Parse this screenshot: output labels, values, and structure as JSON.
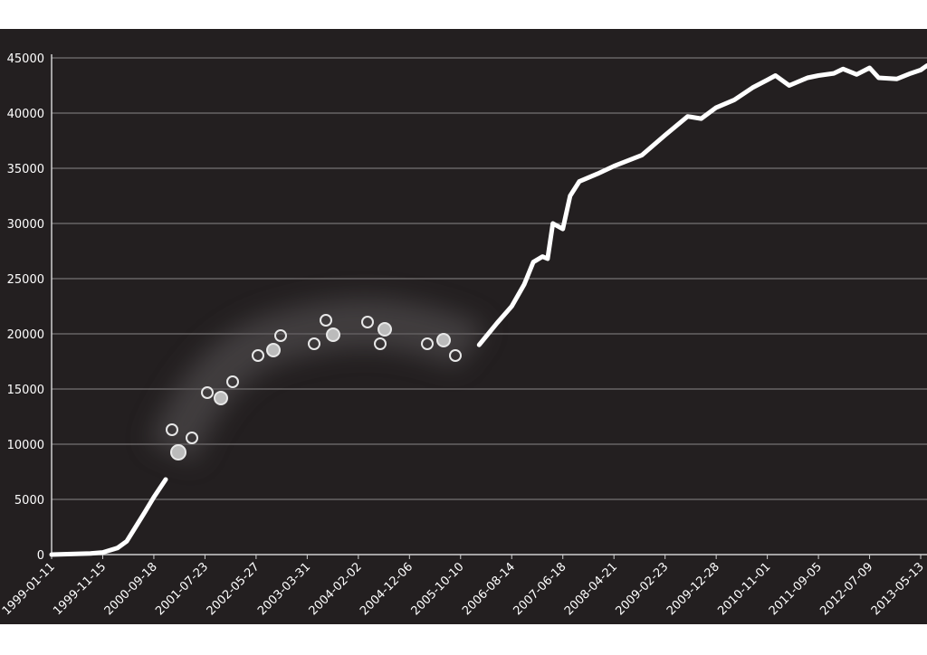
{
  "chart_data": {
    "type": "line",
    "x": [
      "1999-01-11",
      "1999-09-02",
      "1999-11-15",
      "2000-02-12",
      "2000-04-07",
      "2000-05-31",
      "2000-07-24",
      "2000-09-18",
      "2000-11-28",
      "2003-03-31",
      "2006-01-30",
      "2006-05-19",
      "2006-08-14",
      "2006-10-29",
      "2006-12-22",
      "2007-02-15",
      "2007-03-18",
      "2007-04-19",
      "2007-06-18",
      "2007-08-01",
      "2007-09-25",
      "2008-01-13",
      "2008-04-21",
      "2008-10-07",
      "2009-02-23",
      "2009-07-09",
      "2009-09-29",
      "2009-12-28",
      "2010-04-16",
      "2010-08-04",
      "2010-11-01",
      "2010-12-20",
      "2011-03-13",
      "2011-07-01",
      "2011-09-05",
      "2011-12-07",
      "2012-01-31",
      "2012-04-22",
      "2012-07-09",
      "2012-09-02",
      "2012-12-21",
      "2013-03-14",
      "2013-05-13",
      "2013-06-20"
    ],
    "values": [
      0,
      100,
      200,
      600,
      1200,
      2500,
      3800,
      5200,
      6800,
      null,
      19000,
      21000,
      22500,
      24500,
      26500,
      27000,
      26800,
      30000,
      29500,
      32500,
      33800,
      34500,
      35200,
      36200,
      38000,
      39700,
      39500,
      40500,
      41200,
      42300,
      43000,
      43400,
      42500,
      43200,
      43400,
      43600,
      44000,
      43500,
      44100,
      43200,
      43100,
      43600,
      43900,
      44300
    ],
    "color": "#ffffff",
    "xlim": [
      "1999-01-11",
      "2013-06-20"
    ],
    "xticks": [
      "1999-01-11",
      "1999-11-15",
      "2000-09-18",
      "2001-07-23",
      "2002-05-27",
      "2003-03-31",
      "2004-02-02",
      "2004-12-06",
      "2005-10-10",
      "2006-08-14",
      "2007-06-18",
      "2008-04-21",
      "2009-02-23",
      "2009-12-28",
      "2010-11-01",
      "2011-09-05",
      "2012-07-09",
      "2013-05-13"
    ],
    "ylim": [
      0,
      45000
    ],
    "yticks": [
      0,
      5000,
      10000,
      15000,
      20000,
      25000,
      30000,
      35000,
      40000,
      45000
    ],
    "grid": true
  }
}
